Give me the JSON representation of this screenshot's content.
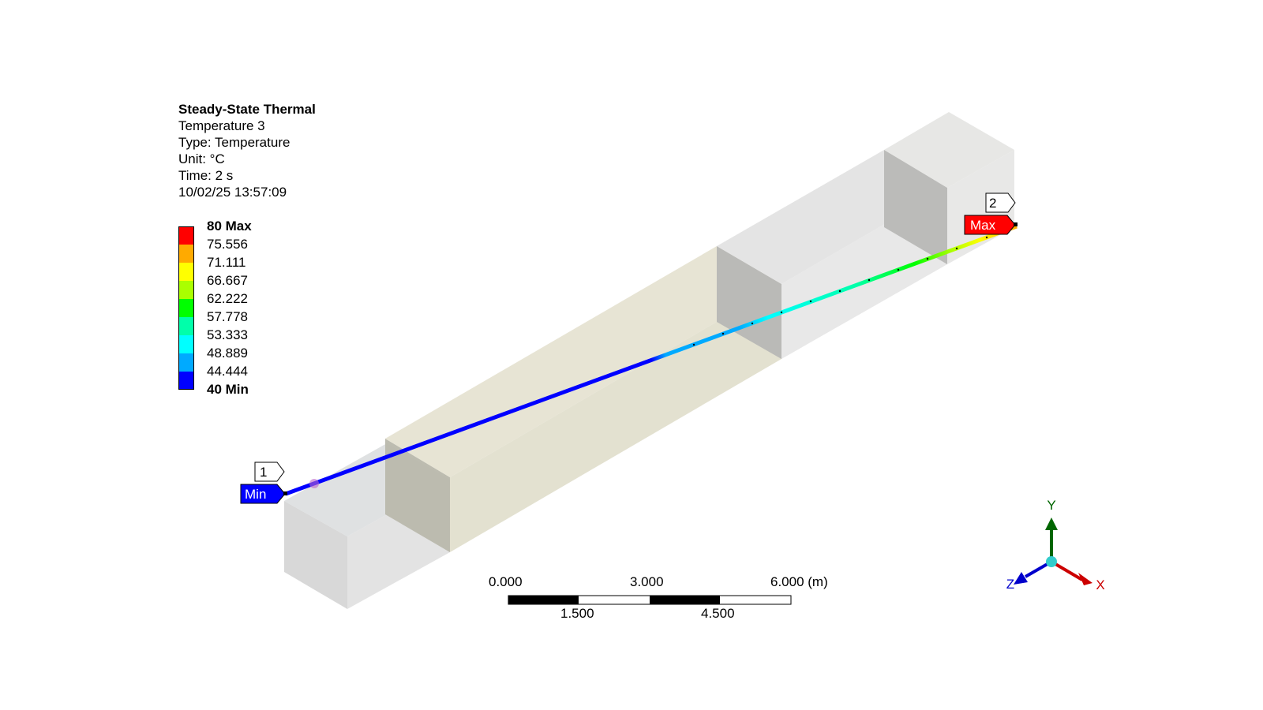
{
  "result_info": {
    "analysis": "Steady-State Thermal",
    "result_name": "Temperature 3",
    "type": "Type: Temperature",
    "unit": "Unit: °C",
    "time": "Time: 2 s",
    "timestamp": "10/02/25 13:57:09"
  },
  "legend": {
    "labels": [
      "80 Max",
      "75.556",
      "71.111",
      "66.667",
      "62.222",
      "57.778",
      "53.333",
      "48.889",
      "44.444",
      "40 Min"
    ],
    "colors": [
      "#ff0000",
      "#ffaa00",
      "#ffff00",
      "#aaff00",
      "#00ff00",
      "#00ffaa",
      "#00ffff",
      "#00aaff",
      "#0000ff"
    ]
  },
  "probes": {
    "min_tag": "Min",
    "max_tag": "Max",
    "point_1_label": "1",
    "point_2_label": "2",
    "min_color": "#0000ff",
    "max_color": "#ff0000"
  },
  "scale_bar": {
    "top_labels": [
      "0.000",
      "3.000",
      "6.000 (m)"
    ],
    "bottom_labels": [
      "1.500",
      "4.500"
    ]
  },
  "triad": {
    "x_label": "X",
    "y_label": "Y",
    "z_label": "Z",
    "x_color": "#cc0000",
    "y_color": "#006600",
    "z_color": "#0000cc",
    "center_color": "#33cccc"
  }
}
